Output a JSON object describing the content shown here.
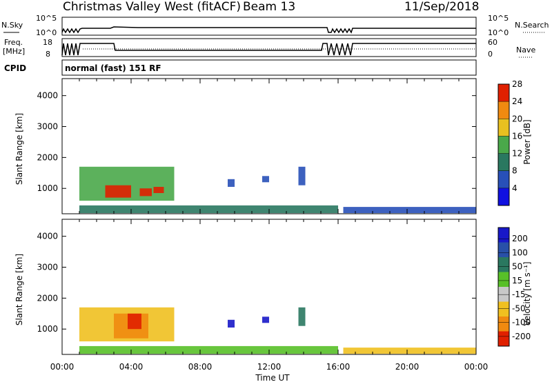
{
  "header": {
    "station": "Christmas Valley West (fitACF)",
    "beam": "Beam 13",
    "date": "11/Sep/2018"
  },
  "panels": {
    "nsky_label": "N.Sky",
    "nsky_ticks": [
      "10^5",
      "10^0"
    ],
    "nsearch_label": "N.Search",
    "nsearch_ticks": [
      "10^5",
      "10^0"
    ],
    "freq_label_1": "Freq.",
    "freq_label_2": "[MHz]",
    "freq_ticks": [
      "18",
      "8"
    ],
    "nave_label": "Nave",
    "nave_ticks": [
      "60",
      "0"
    ],
    "cpid_label": "CPID",
    "cpid_text": "normal (fast) 151 RF"
  },
  "chart_data": [
    {
      "type": "heatmap",
      "title": "",
      "xlabel": "Time UT",
      "ylabel": "Slant Range [km]",
      "x_ticks": [
        "00:00",
        "04:00",
        "08:00",
        "12:00",
        "16:00",
        "20:00",
        "00:00"
      ],
      "xlim_hours": [
        0,
        24
      ],
      "y_ticks": [
        "1000",
        "2000",
        "3000",
        "4000"
      ],
      "ylim": [
        180,
        4550
      ],
      "colorbar": {
        "label": "Power [dB]",
        "ticks": [
          "4",
          "8",
          "12",
          "16",
          "20",
          "24",
          "28"
        ],
        "range": [
          0,
          30
        ],
        "colors": [
          "#1010e0",
          "#2850b8",
          "#2a7860",
          "#4aa84a",
          "#e8c020",
          "#f08a10",
          "#e02000"
        ]
      },
      "regions": [
        {
          "t0": 1.0,
          "t1": 6.5,
          "r0": 600,
          "r1": 1700,
          "level": 16
        },
        {
          "t0": 2.5,
          "t1": 4.0,
          "r0": 700,
          "r1": 1100,
          "level": 28
        },
        {
          "t0": 4.5,
          "t1": 5.2,
          "r0": 750,
          "r1": 1000,
          "level": 28
        },
        {
          "t0": 5.3,
          "t1": 5.9,
          "r0": 850,
          "r1": 1050,
          "level": 28
        },
        {
          "t0": 9.6,
          "t1": 10.0,
          "r0": 1050,
          "r1": 1300,
          "level": 8
        },
        {
          "t0": 11.6,
          "t1": 12.0,
          "r0": 1200,
          "r1": 1400,
          "level": 8
        },
        {
          "t0": 13.7,
          "t1": 14.1,
          "r0": 1100,
          "r1": 1700,
          "level": 8
        },
        {
          "t0": 1.0,
          "t1": 16.0,
          "r0": 200,
          "r1": 450,
          "level": 12
        },
        {
          "t0": 16.3,
          "t1": 24.0,
          "r0": 200,
          "r1": 400,
          "level": 8
        }
      ]
    },
    {
      "type": "heatmap",
      "title": "",
      "xlabel": "Time UT",
      "ylabel": "Slant Range [km]",
      "x_ticks": [
        "00:00",
        "04:00",
        "08:00",
        "12:00",
        "16:00",
        "20:00",
        "00:00"
      ],
      "xlim_hours": [
        0,
        24
      ],
      "y_ticks": [
        "1000",
        "2000",
        "3000",
        "4000"
      ],
      "ylim": [
        180,
        4550
      ],
      "colorbar": {
        "label": "Velocity [m s⁻¹]",
        "ticks": [
          "200",
          "100",
          "50",
          "15",
          "-15",
          "-50",
          "-100",
          "-200"
        ],
        "colors": [
          "#1818c8",
          "#2850a8",
          "#2a7860",
          "#58c028",
          "#c8c8c8",
          "#f0c020",
          "#f08a10",
          "#e02000"
        ]
      },
      "regions": [
        {
          "t0": 1.0,
          "t1": 6.5,
          "r0": 600,
          "r1": 1700,
          "level": -50
        },
        {
          "t0": 3.0,
          "t1": 5.0,
          "r0": 700,
          "r1": 1500,
          "level": -100
        },
        {
          "t0": 3.8,
          "t1": 4.6,
          "r0": 1000,
          "r1": 1500,
          "level": -200
        },
        {
          "t0": 9.6,
          "t1": 10.0,
          "r0": 1050,
          "r1": 1300,
          "level": 200
        },
        {
          "t0": 11.6,
          "t1": 12.0,
          "r0": 1200,
          "r1": 1400,
          "level": 200
        },
        {
          "t0": 13.7,
          "t1": 14.1,
          "r0": 1100,
          "r1": 1700,
          "level": 50
        },
        {
          "t0": 1.0,
          "t1": 16.0,
          "r0": 200,
          "r1": 450,
          "level": 15
        },
        {
          "t0": 16.3,
          "t1": 24.0,
          "r0": 200,
          "r1": 400,
          "level": -50
        }
      ]
    }
  ]
}
